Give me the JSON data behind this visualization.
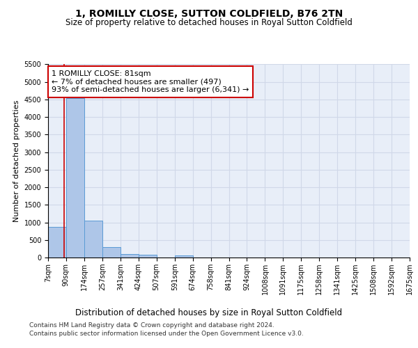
{
  "title": "1, ROMILLY CLOSE, SUTTON COLDFIELD, B76 2TN",
  "subtitle": "Size of property relative to detached houses in Royal Sutton Coldfield",
  "xlabel": "Distribution of detached houses by size in Royal Sutton Coldfield",
  "ylabel": "Number of detached properties",
  "footer_line1": "Contains HM Land Registry data © Crown copyright and database right 2024.",
  "footer_line2": "Contains public sector information licensed under the Open Government Licence v3.0.",
  "bar_edges": [
    7,
    90,
    174,
    257,
    341,
    424,
    507,
    591,
    674,
    758,
    841,
    924,
    1008,
    1091,
    1175,
    1258,
    1341,
    1425,
    1508,
    1592,
    1675
  ],
  "bar_heights": [
    870,
    4530,
    1060,
    290,
    90,
    70,
    0,
    60,
    0,
    0,
    0,
    0,
    0,
    0,
    0,
    0,
    0,
    0,
    0,
    0
  ],
  "bar_color": "#aec6e8",
  "bar_edgecolor": "#5a9bd5",
  "red_line_x": 81,
  "annotation_text": "1 ROMILLY CLOSE: 81sqm\n← 7% of detached houses are smaller (497)\n93% of semi-detached houses are larger (6,341) →",
  "annotation_box_color": "#ffffff",
  "annotation_box_edgecolor": "#cc0000",
  "ylim": [
    0,
    5500
  ],
  "yticks": [
    0,
    500,
    1000,
    1500,
    2000,
    2500,
    3000,
    3500,
    4000,
    4500,
    5000,
    5500
  ],
  "tick_labels": [
    "7sqm",
    "90sqm",
    "174sqm",
    "257sqm",
    "341sqm",
    "424sqm",
    "507sqm",
    "591sqm",
    "674sqm",
    "758sqm",
    "841sqm",
    "924sqm",
    "1008sqm",
    "1091sqm",
    "1175sqm",
    "1258sqm",
    "1341sqm",
    "1425sqm",
    "1508sqm",
    "1592sqm",
    "1675sqm"
  ],
  "grid_color": "#d0d8e8",
  "background_color": "#e8eef8",
  "fig_background": "#ffffff",
  "title_fontsize": 10,
  "subtitle_fontsize": 8.5,
  "ylabel_fontsize": 8,
  "xlabel_fontsize": 8.5,
  "tick_fontsize": 7,
  "annotation_fontsize": 8,
  "footer_fontsize": 6.5
}
